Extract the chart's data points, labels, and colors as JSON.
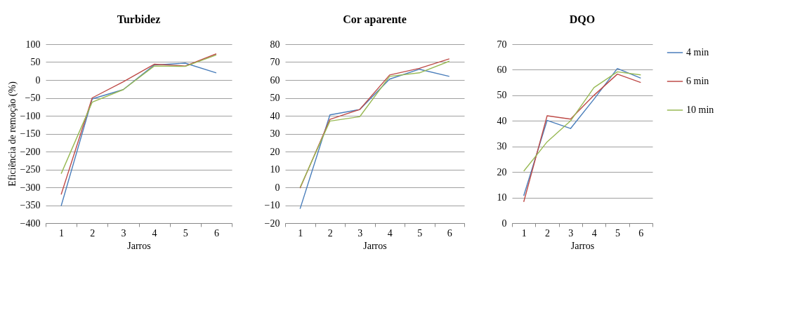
{
  "chart_data": [
    {
      "type": "line",
      "title": "Turbidez",
      "xlabel": "Jarros",
      "ylabel": "Eficiência de remoção (%)",
      "categories": [
        "1",
        "2",
        "3",
        "4",
        "5",
        "6"
      ],
      "ylim": [
        -400,
        100
      ],
      "yticks": [
        -400,
        -350,
        -300,
        -250,
        -200,
        -150,
        -100,
        -50,
        0,
        50,
        100
      ],
      "grid": "y",
      "legend": false,
      "series": [
        {
          "color": "#4a7ebb",
          "values": [
            -352,
            -53,
            -27,
            42,
            47,
            20
          ]
        },
        {
          "color": "#be4b48",
          "values": [
            -320,
            -50,
            -5,
            44,
            39,
            73
          ]
        },
        {
          "color": "#98b954",
          "values": [
            -262,
            -62,
            -27,
            39,
            38,
            70
          ]
        }
      ]
    },
    {
      "type": "line",
      "title": "Cor aparente",
      "xlabel": "Jarros",
      "categories": [
        "1",
        "2",
        "3",
        "4",
        "5",
        "6"
      ],
      "ylim": [
        -20,
        80
      ],
      "yticks": [
        -20,
        -10,
        0,
        10,
        20,
        30,
        40,
        50,
        60,
        70,
        80
      ],
      "grid": "y",
      "legend": false,
      "series": [
        {
          "color": "#4a7ebb",
          "values": [
            -12,
            40.5,
            43.5,
            60.5,
            66,
            62
          ]
        },
        {
          "color": "#be4b48",
          "values": [
            -0.5,
            38,
            43.5,
            62.8,
            66.5,
            71.8
          ]
        },
        {
          "color": "#98b954",
          "values": [
            0,
            37,
            39.5,
            62,
            64,
            70.5
          ]
        }
      ]
    },
    {
      "type": "line",
      "title": "DQO",
      "xlabel": "Jarros",
      "categories": [
        "1",
        "2",
        "3",
        "4",
        "5",
        "6"
      ],
      "ylim": [
        0,
        70
      ],
      "yticks": [
        0,
        10,
        20,
        30,
        40,
        50,
        60,
        70
      ],
      "grid": "y",
      "legend": "right",
      "series": [
        {
          "name": "4 min",
          "color": "#4a7ebb",
          "values": [
            10.7,
            40.2,
            37,
            48.5,
            60.5,
            56.7
          ]
        },
        {
          "name": "6 min",
          "color": "#be4b48",
          "values": [
            8.3,
            42,
            40.7,
            50,
            58.3,
            55
          ]
        },
        {
          "name": "10 min",
          "color": "#98b954",
          "values": [
            20.3,
            31.8,
            40,
            53,
            59.2,
            58
          ]
        }
      ]
    }
  ]
}
